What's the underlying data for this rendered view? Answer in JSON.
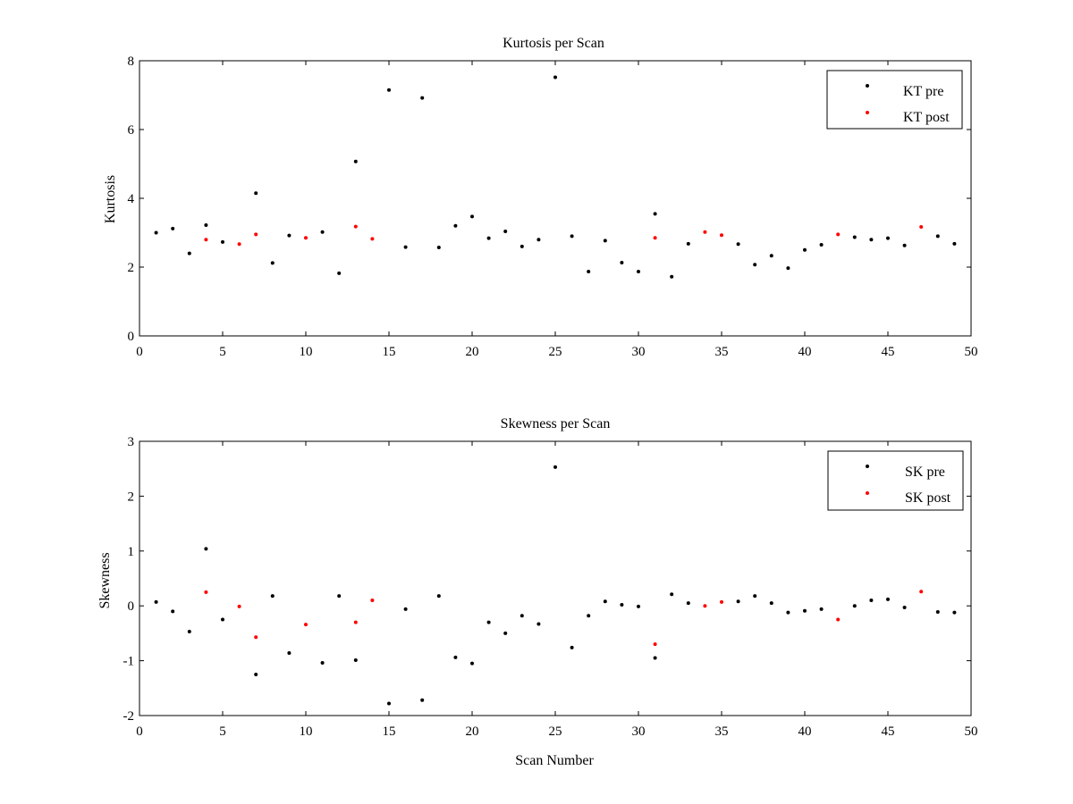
{
  "chart_data": [
    {
      "type": "scatter",
      "title": "Kurtosis per Scan",
      "xlabel": "",
      "ylabel": "Kurtosis",
      "xlim": [
        0,
        50
      ],
      "ylim": [
        0,
        8
      ],
      "xticks": [
        0,
        5,
        10,
        15,
        20,
        25,
        30,
        35,
        40,
        45,
        50
      ],
      "yticks": [
        0,
        2,
        4,
        6,
        8
      ],
      "grid": false,
      "legend_position": "top-right",
      "series": [
        {
          "name": "KT pre",
          "color": "#000000",
          "points": [
            [
              1,
              3.0
            ],
            [
              2,
              3.12
            ],
            [
              3,
              2.4
            ],
            [
              4,
              3.22
            ],
            [
              5,
              2.73
            ],
            [
              7,
              4.15
            ],
            [
              8,
              2.12
            ],
            [
              9,
              2.92
            ],
            [
              11,
              3.02
            ],
            [
              12,
              1.82
            ],
            [
              13,
              5.07
            ],
            [
              15,
              7.15
            ],
            [
              16,
              2.58
            ],
            [
              17,
              6.92
            ],
            [
              18,
              2.57
            ],
            [
              19,
              3.2
            ],
            [
              20,
              3.47
            ],
            [
              21,
              2.84
            ],
            [
              22,
              3.04
            ],
            [
              23,
              2.6
            ],
            [
              24,
              2.8
            ],
            [
              25,
              7.52
            ],
            [
              26,
              2.9
            ],
            [
              27,
              1.87
            ],
            [
              28,
              2.77
            ],
            [
              29,
              2.13
            ],
            [
              30,
              1.87
            ],
            [
              31,
              3.55
            ],
            [
              32,
              1.72
            ],
            [
              33,
              2.68
            ],
            [
              36,
              2.67
            ],
            [
              37,
              2.07
            ],
            [
              38,
              2.33
            ],
            [
              39,
              1.97
            ],
            [
              40,
              2.5
            ],
            [
              41,
              2.65
            ],
            [
              43,
              2.87
            ],
            [
              44,
              2.8
            ],
            [
              45,
              2.84
            ],
            [
              46,
              2.63
            ],
            [
              48,
              2.9
            ],
            [
              49,
              2.68
            ]
          ]
        },
        {
          "name": "KT post",
          "color": "#ff0000",
          "points": [
            [
              4,
              2.8
            ],
            [
              6,
              2.67
            ],
            [
              7,
              2.95
            ],
            [
              10,
              2.85
            ],
            [
              13,
              3.18
            ],
            [
              14,
              2.82
            ],
            [
              31,
              2.85
            ],
            [
              34,
              3.02
            ],
            [
              35,
              2.93
            ],
            [
              42,
              2.95
            ],
            [
              47,
              3.17
            ]
          ]
        }
      ]
    },
    {
      "type": "scatter",
      "title": "Skewness per Scan",
      "xlabel": "Scan Number",
      "ylabel": "Skewness",
      "xlim": [
        0,
        50
      ],
      "ylim": [
        -2,
        3
      ],
      "xticks": [
        0,
        5,
        10,
        15,
        20,
        25,
        30,
        35,
        40,
        45,
        50
      ],
      "yticks": [
        -2,
        -1,
        0,
        1,
        2,
        3
      ],
      "grid": false,
      "legend_position": "top-right",
      "series": [
        {
          "name": "SK pre",
          "color": "#000000",
          "points": [
            [
              1,
              0.07
            ],
            [
              2,
              -0.1
            ],
            [
              3,
              -0.47
            ],
            [
              4,
              1.04
            ],
            [
              5,
              -0.25
            ],
            [
              7,
              -1.25
            ],
            [
              8,
              0.18
            ],
            [
              9,
              -0.86
            ],
            [
              11,
              -1.04
            ],
            [
              12,
              0.18
            ],
            [
              13,
              -0.99
            ],
            [
              15,
              -1.78
            ],
            [
              16,
              -0.06
            ],
            [
              17,
              -1.72
            ],
            [
              18,
              0.18
            ],
            [
              19,
              -0.94
            ],
            [
              20,
              -1.05
            ],
            [
              21,
              -0.3
            ],
            [
              22,
              -0.5
            ],
            [
              23,
              -0.18
            ],
            [
              24,
              -0.33
            ],
            [
              25,
              2.53
            ],
            [
              26,
              -0.76
            ],
            [
              27,
              -0.18
            ],
            [
              28,
              0.08
            ],
            [
              29,
              0.02
            ],
            [
              30,
              -0.01
            ],
            [
              31,
              -0.95
            ],
            [
              32,
              0.21
            ],
            [
              33,
              0.05
            ],
            [
              36,
              0.08
            ],
            [
              37,
              0.18
            ],
            [
              38,
              0.05
            ],
            [
              39,
              -0.12
            ],
            [
              40,
              -0.09
            ],
            [
              41,
              -0.06
            ],
            [
              43,
              0.0
            ],
            [
              44,
              0.1
            ],
            [
              45,
              0.12
            ],
            [
              46,
              -0.03
            ],
            [
              48,
              -0.11
            ],
            [
              49,
              -0.12
            ]
          ]
        },
        {
          "name": "SK post",
          "color": "#ff0000",
          "points": [
            [
              4,
              0.25
            ],
            [
              6,
              -0.01
            ],
            [
              7,
              -0.57
            ],
            [
              10,
              -0.34
            ],
            [
              13,
              -0.3
            ],
            [
              14,
              0.1
            ],
            [
              31,
              -0.7
            ],
            [
              34,
              0.0
            ],
            [
              35,
              0.07
            ],
            [
              42,
              -0.25
            ],
            [
              47,
              0.26
            ]
          ]
        }
      ]
    }
  ]
}
